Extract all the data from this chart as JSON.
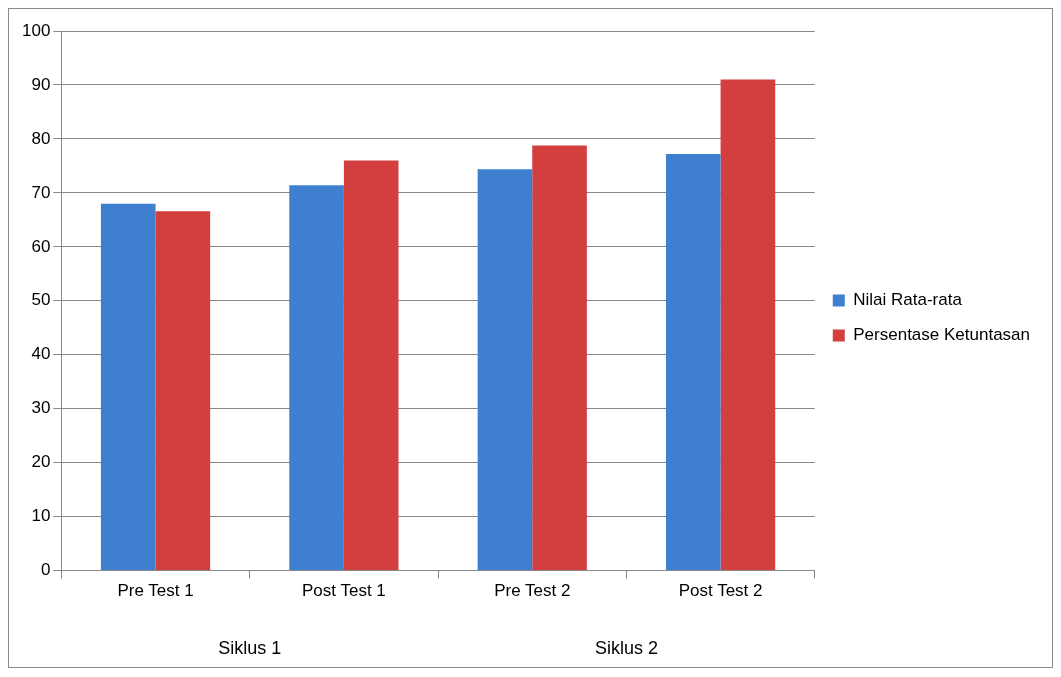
{
  "chart_data": {
    "type": "bar",
    "categories": [
      "Pre Test 1",
      "Post Test 1",
      "Pre Test 2",
      "Post Test 2"
    ],
    "series": [
      {
        "name": "Nilai Rata-rata",
        "color": "#3f7fd0",
        "values": [
          68.0,
          71.4,
          74.4,
          77.2
        ]
      },
      {
        "name": "Persentase Ketuntasan",
        "color": "#d33f3f",
        "values": [
          66.6,
          76.0,
          78.8,
          91.0
        ]
      }
    ],
    "ylim": [
      0,
      100
    ],
    "yticks": [
      0,
      10,
      20,
      30,
      40,
      50,
      60,
      70,
      80,
      90,
      100
    ],
    "grid": "y",
    "legend": "right",
    "annotations": [
      "Siklus 1",
      "Siklus 2"
    ]
  }
}
